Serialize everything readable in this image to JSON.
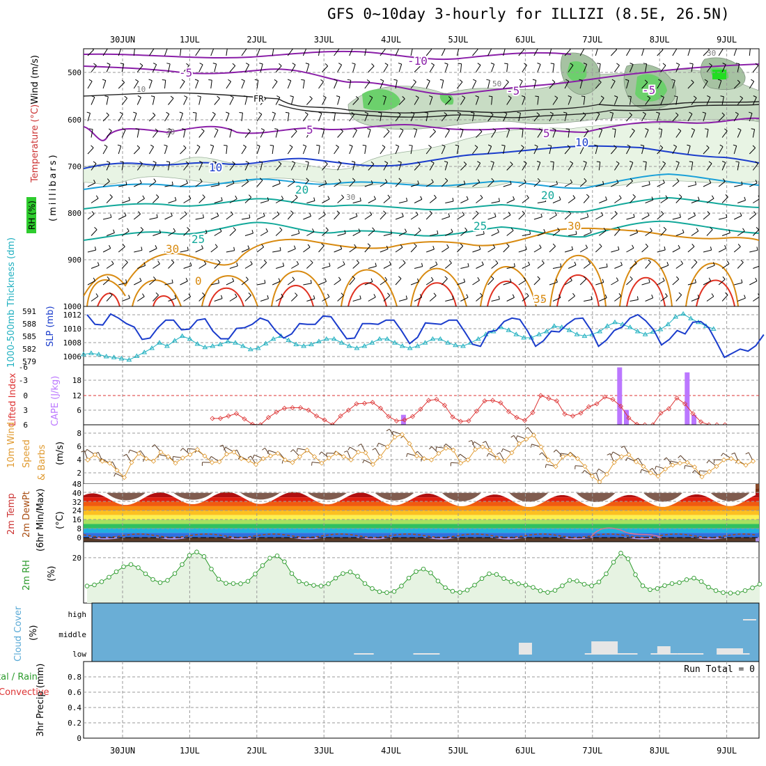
{
  "title": "GFS 0~10day 3-hourly for ILLIZI (8.5E, 26.5N)",
  "date_labels": [
    "30JUN",
    "1JUL",
    "2JUL",
    "3JUL",
    "4JUL",
    "5JUL",
    "6JUL",
    "7JUL",
    "8JUL",
    "9JUL"
  ],
  "colors": {
    "grid": "#9a9a9a",
    "temp_line": "#cc6600",
    "dew_line": "#a84c10",
    "slp": "#1a3ccc",
    "thickness": "#20b0c0",
    "cape": "#bb77ff",
    "lifted": "#dd3333",
    "wind": "#e09a30",
    "rh": "#2a9a2a",
    "cloud_bg": "#6aaed6",
    "cloud_fill": "#e6e6e6"
  },
  "chart_data": [
    {
      "id": "upper_air",
      "type": "contour",
      "title": "Wind (m/s) / Temperature (°C) / RH (%)",
      "ylabel": "millibars",
      "yticks": [
        "500",
        "600",
        "700",
        "800",
        "900",
        "1000"
      ],
      "ylim": [
        1000,
        450
      ],
      "contour_labels": [
        "-10",
        "-5",
        "FR",
        "5",
        "10",
        "20",
        "25",
        "30",
        "35",
        "0",
        "10",
        "30",
        "50",
        "30",
        "-5",
        "-5",
        "5",
        "10",
        "20",
        "25",
        "30",
        "30"
      ]
    },
    {
      "id": "slp_thickness",
      "type": "line",
      "ylabel_left": "1000-500mb Thickness (dm)",
      "ylabel_right": "SLP (mb)",
      "left_ticks": [
        "591",
        "588",
        "585",
        "582",
        "579"
      ],
      "right_ticks": [
        "1012",
        "1010",
        "1008",
        "1006"
      ],
      "thickness_range": [
        578,
        592
      ],
      "slp_range": [
        1004.5,
        1013
      ],
      "thickness": [
        580.5,
        580.8,
        580.5,
        580.0,
        579.8,
        579.5,
        579.2,
        580.1,
        581.0,
        582.0,
        583.3,
        582.5,
        583.8,
        584.9,
        584.2,
        583.0,
        582.2,
        582.5,
        582.9,
        583.6,
        583.3,
        582.5,
        581.7,
        582.0,
        583.1,
        584.2,
        584.9,
        583.9,
        582.9,
        582.5,
        582.9,
        583.6,
        584.2,
        584.2,
        583.3,
        582.5,
        582.0,
        582.5,
        583.3,
        584.2,
        584.2,
        583.3,
        582.5,
        582.0,
        582.5,
        583.3,
        584.2,
        584.2,
        583.3,
        582.7,
        582.5,
        583.3,
        584.2,
        585.3,
        586.0,
        587.0,
        586.3,
        585.3,
        584.5,
        584.5,
        585.3,
        586.0,
        587.3,
        587.0,
        586.3,
        585.3,
        584.9,
        585.3,
        586.0,
        587.3,
        588.2,
        587.7,
        587.0,
        586.0,
        585.3,
        585.9,
        586.5,
        587.7,
        589.5,
        590.2,
        589.1,
        588.2,
        587.3,
        586.6
      ],
      "slp": [
        1011.8,
        1010.4,
        1010.3,
        1011.9,
        1011.3,
        1010.5,
        1010.0,
        1008.2,
        1008.4,
        1009.9,
        1011.0,
        1011.0,
        1009.6,
        1009.7,
        1011.0,
        1011.2,
        1009.4,
        1008.3,
        1008.3,
        1009.8,
        1009.9,
        1010.4,
        1011.3,
        1010.9,
        1009.4,
        1008.4,
        1009.0,
        1010.5,
        1010.4,
        1010.4,
        1011.6,
        1011.5,
        1009.9,
        1008.3,
        1008.4,
        1010.5,
        1010.5,
        1010.4,
        1011.0,
        1011.0,
        1009.4,
        1007.6,
        1008.5,
        1010.6,
        1010.5,
        1010.4,
        1011.0,
        1011.0,
        1009.3,
        1007.5,
        1007.2,
        1009.3,
        1009.5,
        1010.8,
        1011.3,
        1011.1,
        1009.4,
        1007.2,
        1008.0,
        1009.4,
        1009.3,
        1010.4,
        1011.2,
        1011.3,
        1009.6,
        1007.2,
        1008.1,
        1009.5,
        1010.0,
        1011.3,
        1011.8,
        1010.9,
        1009.6,
        1007.4,
        1008.2,
        1009.5,
        1009.0,
        1010.7,
        1010.8,
        1009.9,
        1007.8,
        1005.6,
        1006.2,
        1006.8,
        1006.5,
        1007.3,
        1008.9
      ]
    },
    {
      "id": "cape_li",
      "type": "bar+line",
      "ylabel_left": "Lifted Index",
      "ylabel_right": "CAPE (J/kg)",
      "li_ticks": [
        "-6",
        "-3",
        "0",
        "3",
        "6"
      ],
      "cape_ticks": [
        "18",
        "12",
        "6"
      ],
      "li_range": [
        6,
        -6
      ],
      "cape_range": [
        0,
        24
      ],
      "lifted_index": [
        null,
        null,
        null,
        null,
        null,
        null,
        null,
        null,
        null,
        null,
        null,
        null,
        null,
        null,
        null,
        null,
        null,
        null,
        4.7,
        4.7,
        4.2,
        3.7,
        4.8,
        5.9,
        6.0,
        4.5,
        3.4,
        2.6,
        2.5,
        2.5,
        3.0,
        4.2,
        5.0,
        6.0,
        4.2,
        3.0,
        1.7,
        1.6,
        1.4,
        2.6,
        4.3,
        5.2,
        5.0,
        4.3,
        2.8,
        1.0,
        0.8,
        2.0,
        4.4,
        5.3,
        5.2,
        3.2,
        1.1,
        1.0,
        1.5,
        3.3,
        4.5,
        5.1,
        3.5,
        0.0,
        0.6,
        1.1,
        3.8,
        4.2,
        3.6,
        2.3,
        1.7,
        0.3,
        0.8,
        2.2,
        4.6,
        5.9,
        6.0,
        6.0,
        3.6,
        2.7,
        0.5,
        1.7,
        3.7,
        5.4,
        6.0,
        6.0,
        6.0
      ],
      "cape_bars": [
        {
          "i": 47,
          "v": 4
        },
        {
          "i": 79,
          "v": 23
        },
        {
          "i": 80,
          "v": 6
        },
        {
          "i": 89,
          "v": 21
        },
        {
          "i": 90,
          "v": 4
        }
      ]
    },
    {
      "id": "wind10m",
      "type": "line",
      "ylabel": "10m Wind Speed & Barbs (m/s)",
      "yticks": [
        "8",
        "6",
        "4",
        "2"
      ],
      "ylim": [
        0.3,
        9.4
      ],
      "values": [
        4.0,
        4.8,
        3.8,
        3.5,
        2.4,
        1.3,
        3.6,
        5.0,
        4.2,
        3.8,
        5.2,
        4.5,
        3.5,
        4.3,
        4.8,
        5.6,
        4.6,
        3.6,
        3.7,
        4.9,
        5.2,
        4.2,
        3.9,
        3.3,
        4.2,
        4.6,
        5.0,
        4.0,
        3.6,
        4.5,
        5.5,
        4.5,
        3.5,
        4.3,
        5.0,
        4.5,
        4.0,
        5.2,
        5.1,
        3.3,
        4.5,
        6.0,
        7.5,
        7.9,
        6.5,
        4.6,
        4.2,
        4.0,
        5.0,
        5.8,
        5.5,
        3.5,
        4.0,
        5.6,
        6.0,
        5.5,
        4.3,
        3.8,
        5.1,
        6.5,
        7.2,
        7.8,
        6.0,
        4.0,
        3.0,
        4.5,
        4.8,
        4.2,
        3.0,
        1.5,
        0.6,
        1.8,
        3.6,
        4.5,
        4.8,
        3.7,
        3.0,
        2.0,
        1.5,
        2.6,
        3.2,
        3.5,
        3.6,
        2.9,
        1.4,
        2.2,
        3.0,
        4.0,
        4.2,
        3.7,
        3.2,
        3.8
      ]
    },
    {
      "id": "temp2m",
      "type": "area",
      "ylabel": "2m Temp / 2m DewPt (6hr Min/Max) (°C)",
      "yticks": [
        "48",
        "40",
        "32",
        "24",
        "16",
        "8",
        "0"
      ],
      "ylim": [
        -4,
        48
      ],
      "temp_mean": 34,
      "temp_amp": 5.5,
      "dew_mean": 1.5,
      "dew_amp": 1.5,
      "temp_peak_day_fraction": 0.55
    },
    {
      "id": "rh2m",
      "type": "line",
      "ylabel": "2m RH (%)",
      "yticks": [
        "20"
      ],
      "ylim": [
        0,
        27
      ],
      "values": [
        7.5,
        8.0,
        9.4,
        11.4,
        13.8,
        16.0,
        17.0,
        15.6,
        12.9,
        10.4,
        9.0,
        10.0,
        13.0,
        17.0,
        21.0,
        22.5,
        20.5,
        15.0,
        10.5,
        8.7,
        8.6,
        8.5,
        9.6,
        12.8,
        16.5,
        19.8,
        20.8,
        18.2,
        13.0,
        9.5,
        8.5,
        7.8,
        7.5,
        8.5,
        11.0,
        13.0,
        13.7,
        11.8,
        8.6,
        6.4,
        5.0,
        4.6,
        5.1,
        7.5,
        11.0,
        13.9,
        15.0,
        13.3,
        9.7,
        6.8,
        5.2,
        4.7,
        5.7,
        7.9,
        10.8,
        12.9,
        12.6,
        10.8,
        9.4,
        8.5,
        7.9,
        6.9,
        5.4,
        4.7,
        5.6,
        7.6,
        10.0,
        9.7,
        8.3,
        7.6,
        9.3,
        12.9,
        18.0,
        22.0,
        19.5,
        12.5,
        7.6,
        5.9,
        6.4,
        7.7,
        8.6,
        9.0,
        10.3,
        11.0,
        9.5,
        7.0,
        5.5,
        4.6,
        4.4,
        4.5,
        5.5,
        6.7,
        8.3
      ]
    },
    {
      "id": "cloud",
      "type": "block",
      "ylabel": "Cloud Cover (%)",
      "yticks": [
        "high",
        "middle",
        "low"
      ],
      "blocks": [
        {
          "start": 41,
          "end": 44,
          "level": "low",
          "frac": 0.05
        },
        {
          "start": 50,
          "end": 54,
          "level": "low",
          "frac": 0.05
        },
        {
          "start": 66,
          "end": 68,
          "level": "low",
          "frac": 0.85
        },
        {
          "start": 76,
          "end": 78,
          "level": "low",
          "frac": 0.1
        },
        {
          "start": 77,
          "end": 81,
          "level": "low",
          "frac": 0.95
        },
        {
          "start": 81,
          "end": 84,
          "level": "low",
          "frac": 0.1
        },
        {
          "start": 86,
          "end": 90,
          "level": "low",
          "frac": 0.1
        },
        {
          "start": 87,
          "end": 89,
          "level": "low",
          "frac": 0.6
        },
        {
          "start": 90,
          "end": 94,
          "level": "low",
          "frac": 0.1
        },
        {
          "start": 96,
          "end": 100,
          "level": "low",
          "frac": 0.45
        },
        {
          "start": 98,
          "end": 99,
          "level": "low",
          "frac": 0.2
        },
        {
          "start": 99,
          "end": 101,
          "level": "low",
          "frac": 0.1
        },
        {
          "start": 100,
          "end": 102,
          "level": "high",
          "frac": 0.1
        }
      ]
    },
    {
      "id": "precip",
      "type": "bar",
      "ylabel_left": "Total / Rain",
      "ylabel_left2": "Convective",
      "ylabel": "3hr Precip (mm)",
      "yticks": [
        "0.8",
        "0.6",
        "0.4",
        "0.2",
        "0"
      ],
      "ylim": [
        0,
        1.0
      ],
      "run_total": "Run Total = 0",
      "values": []
    }
  ]
}
